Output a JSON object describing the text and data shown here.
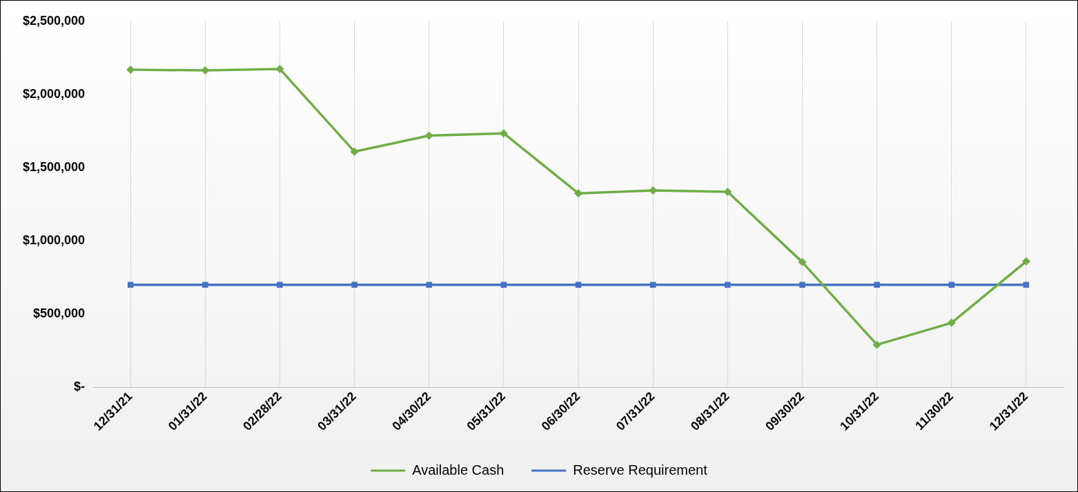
{
  "chart_data": {
    "type": "line",
    "categories": [
      "12/31/21",
      "01/31/22",
      "02/28/22",
      "03/31/22",
      "04/30/22",
      "05/31/22",
      "06/30/22",
      "07/31/22",
      "08/31/22",
      "09/30/22",
      "10/31/22",
      "11/30/22",
      "12/31/22"
    ],
    "series": [
      {
        "name": "Available Cash",
        "color": "#70ad47",
        "marker": "diamond",
        "values": [
          2170000,
          2165000,
          2175000,
          1610000,
          1720000,
          1735000,
          1325000,
          1345000,
          1335000,
          855000,
          290000,
          440000,
          860000
        ]
      },
      {
        "name": "Reserve Requirement",
        "color": "#4472c4",
        "marker": "square",
        "values": [
          700000,
          700000,
          700000,
          700000,
          700000,
          700000,
          700000,
          700000,
          700000,
          700000,
          700000,
          700000,
          700000
        ]
      }
    ],
    "ylim": [
      0,
      2500000
    ],
    "yticks": [
      {
        "value": 0,
        "label": "$-"
      },
      {
        "value": 500000,
        "label": "$500,000"
      },
      {
        "value": 1000000,
        "label": "$1,000,000"
      },
      {
        "value": 1500000,
        "label": "$1,500,000"
      },
      {
        "value": 2000000,
        "label": "$2,000,000"
      },
      {
        "value": 2500000,
        "label": "$2,500,000"
      }
    ],
    "grid": "x",
    "legend": "bottom"
  }
}
